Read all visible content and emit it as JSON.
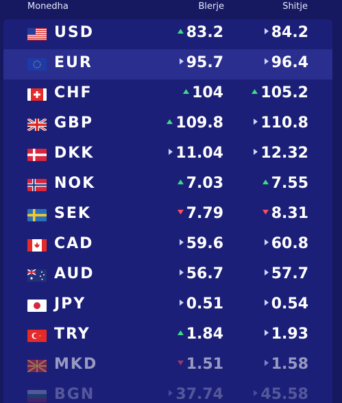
{
  "header": {
    "currency": "Monedha",
    "buy": "Blerje",
    "sell": "Shitje"
  },
  "colors": {
    "up": "#3ddc84",
    "down": "#ff4d5e",
    "neutral": "#d0d3ff"
  },
  "rows": [
    {
      "code": "USD",
      "flag_icon": "usa-flag-icon",
      "buy": "83.2",
      "buy_trend": "up",
      "sell": "84.2",
      "sell_trend": "neutral"
    },
    {
      "code": "EUR",
      "flag_icon": "eu-flag-icon",
      "buy": "95.7",
      "buy_trend": "neutral",
      "sell": "96.4",
      "sell_trend": "neutral"
    },
    {
      "code": "CHF",
      "flag_icon": "swiss-flag-icon",
      "buy": "104",
      "buy_trend": "up",
      "sell": "105.2",
      "sell_trend": "up"
    },
    {
      "code": "GBP",
      "flag_icon": "uk-flag-icon",
      "buy": "109.8",
      "buy_trend": "up",
      "sell": "110.8",
      "sell_trend": "neutral"
    },
    {
      "code": "DKK",
      "flag_icon": "denmark-flag-icon",
      "buy": "11.04",
      "buy_trend": "neutral",
      "sell": "12.32",
      "sell_trend": "neutral"
    },
    {
      "code": "NOK",
      "flag_icon": "norway-flag-icon",
      "buy": "7.03",
      "buy_trend": "up",
      "sell": "7.55",
      "sell_trend": "up"
    },
    {
      "code": "SEK",
      "flag_icon": "sweden-flag-icon",
      "buy": "7.79",
      "buy_trend": "down",
      "sell": "8.31",
      "sell_trend": "down"
    },
    {
      "code": "CAD",
      "flag_icon": "canada-flag-icon",
      "buy": "59.6",
      "buy_trend": "neutral",
      "sell": "60.8",
      "sell_trend": "neutral"
    },
    {
      "code": "AUD",
      "flag_icon": "australia-flag-icon",
      "buy": "56.7",
      "buy_trend": "neutral",
      "sell": "57.7",
      "sell_trend": "neutral"
    },
    {
      "code": "JPY",
      "flag_icon": "japan-flag-icon",
      "buy": "0.51",
      "buy_trend": "neutral",
      "sell": "0.54",
      "sell_trend": "neutral"
    },
    {
      "code": "TRY",
      "flag_icon": "turkey-flag-icon",
      "buy": "1.84",
      "buy_trend": "up",
      "sell": "1.93",
      "sell_trend": "neutral"
    },
    {
      "code": "MKD",
      "flag_icon": "macedonia-flag-icon",
      "buy": "1.51",
      "buy_trend": "down",
      "sell": "1.58",
      "sell_trend": "neutral"
    },
    {
      "code": "BGN",
      "flag_icon": "bulgaria-flag-icon",
      "buy": "37.74",
      "buy_trend": "neutral",
      "sell": "45.58",
      "sell_trend": "neutral"
    }
  ]
}
